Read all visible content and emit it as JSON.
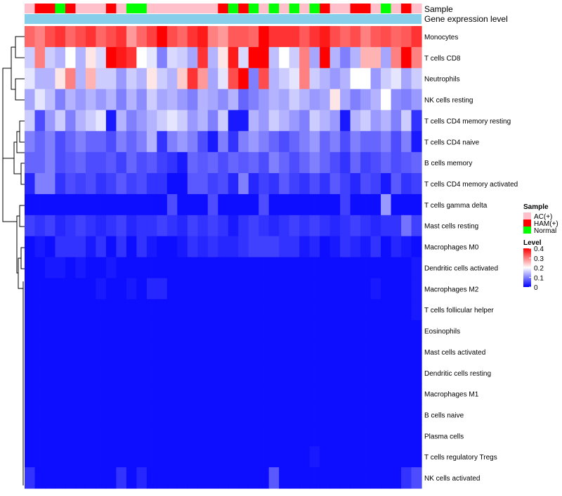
{
  "chart_data": {
    "type": "heatmap",
    "title": "",
    "annotation_tracks": [
      "Sample",
      "Gene expression level"
    ],
    "legends": {
      "sample": {
        "title": "Sample",
        "entries": [
          {
            "label": "AC(+)",
            "color": "#ffc0cb"
          },
          {
            "label": "HAM(+)",
            "color": "#ff0000"
          },
          {
            "label": "Normal",
            "color": "#00ff00"
          }
        ]
      },
      "level": {
        "title": "Level",
        "ticks": [
          "0.4",
          "0.3",
          "0.2",
          "0.1",
          "0"
        ],
        "min": 0,
        "max": 0.4
      }
    },
    "color_scale": {
      "low": "#0000ff",
      "mid": "#ffffff",
      "high": "#ff0000",
      "mid_value": 0.2
    },
    "expression_bar_color": "#87ceeb",
    "sample_groups": [
      "AC(+)",
      "HAM(+)",
      "HAM(+)",
      "Normal",
      "HAM(+)",
      "AC(+)",
      "AC(+)",
      "AC(+)",
      "HAM(+)",
      "AC(+)",
      "Normal",
      "Normal",
      "AC(+)",
      "AC(+)",
      "AC(+)",
      "AC(+)",
      "AC(+)",
      "AC(+)",
      "AC(+)",
      "HAM(+)",
      "Normal",
      "HAM(+)",
      "Normal",
      "AC(+)",
      "Normal",
      "AC(+)",
      "Normal",
      "AC(+)",
      "Normal",
      "HAM(+)",
      "AC(+)",
      "AC(+)",
      "HAM(+)",
      "HAM(+)",
      "AC(+)",
      "Normal",
      "AC(+)",
      "HAM(+)",
      "AC(+)"
    ],
    "rows": [
      "Monocytes",
      "T cells CD8",
      "Neutrophils",
      "NK cells resting",
      "T cells CD4 memory resting",
      "T cells CD4 naive",
      "B cells memory",
      "T cells CD4 memory activated",
      "T cells gamma delta",
      "Mast cells resting",
      "Macrophages M0",
      "Dendritic cells activated",
      "Macrophages M2",
      "T cells follicular helper",
      "Eosinophils",
      "Mast cells activated",
      "Dendritic cells resting",
      "Macrophages M1",
      "B cells naive",
      "Plasma cells",
      "T cells regulatory  Tregs",
      "NK cells activated"
    ],
    "values": [
      [
        0.32,
        0.3,
        0.34,
        0.36,
        0.32,
        0.34,
        0.36,
        0.32,
        0.34,
        0.36,
        0.28,
        0.32,
        0.35,
        0.4,
        0.34,
        0.32,
        0.36,
        0.38,
        0.3,
        0.28,
        0.33,
        0.33,
        0.32,
        0.4,
        0.36,
        0.36,
        0.36,
        0.33,
        0.36,
        0.38,
        0.34,
        0.32,
        0.34,
        0.3,
        0.33,
        0.34,
        0.32,
        0.33,
        0.36
      ],
      [
        0.16,
        0.3,
        0.16,
        0.14,
        0.2,
        0.14,
        0.22,
        0.17,
        0.4,
        0.38,
        0.36,
        0.2,
        0.18,
        0.1,
        0.17,
        0.16,
        0.13,
        0.36,
        0.14,
        0.22,
        0.38,
        0.17,
        0.4,
        0.4,
        0.15,
        0.2,
        0.16,
        0.3,
        0.13,
        0.4,
        0.14,
        0.1,
        0.14,
        0.26,
        0.26,
        0.13,
        0.3,
        0.4,
        0.3
      ],
      [
        0.18,
        0.14,
        0.14,
        0.22,
        0.3,
        0.14,
        0.26,
        0.16,
        0.16,
        0.12,
        0.16,
        0.14,
        0.22,
        0.16,
        0.14,
        0.24,
        0.36,
        0.28,
        0.13,
        0.18,
        0.34,
        0.4,
        0.1,
        0.34,
        0.14,
        0.16,
        0.18,
        0.3,
        0.16,
        0.14,
        0.12,
        0.14,
        0.2,
        0.2,
        0.12,
        0.16,
        0.18,
        0.13,
        0.16
      ],
      [
        0.13,
        0.18,
        0.15,
        0.1,
        0.14,
        0.12,
        0.14,
        0.12,
        0.14,
        0.1,
        0.14,
        0.11,
        0.16,
        0.13,
        0.14,
        0.12,
        0.1,
        0.14,
        0.13,
        0.11,
        0.14,
        0.08,
        0.1,
        0.12,
        0.14,
        0.13,
        0.16,
        0.14,
        0.12,
        0.13,
        0.22,
        0.13,
        0.1,
        0.12,
        0.14,
        0.2,
        0.11,
        0.1,
        0.12
      ],
      [
        0.16,
        0.06,
        0.12,
        0.16,
        0.1,
        0.14,
        0.16,
        0.18,
        0.02,
        0.14,
        0.1,
        0.12,
        0.14,
        0.16,
        0.18,
        0.16,
        0.12,
        0.14,
        0.1,
        0.16,
        0.02,
        0.02,
        0.14,
        0.12,
        0.16,
        0.14,
        0.12,
        0.1,
        0.16,
        0.14,
        0.12,
        0.02,
        0.14,
        0.16,
        0.12,
        0.14,
        0.1,
        0.16,
        0.04
      ],
      [
        0.1,
        0.08,
        0.1,
        0.06,
        0.08,
        0.1,
        0.08,
        0.08,
        0.06,
        0.1,
        0.08,
        0.1,
        0.14,
        0.04,
        0.1,
        0.12,
        0.1,
        0.06,
        0.02,
        0.1,
        0.04,
        0.1,
        0.12,
        0.1,
        0.08,
        0.06,
        0.08,
        0.1,
        0.12,
        0.08,
        0.1,
        0.06,
        0.1,
        0.08,
        0.08,
        0.1,
        0.06,
        0.1,
        0.02
      ],
      [
        0.08,
        0.08,
        0.1,
        0.06,
        0.07,
        0.08,
        0.06,
        0.06,
        0.07,
        0.05,
        0.08,
        0.06,
        0.07,
        0.05,
        0.04,
        0.02,
        0.08,
        0.07,
        0.08,
        0.06,
        0.08,
        0.07,
        0.08,
        0.06,
        0.1,
        0.08,
        0.06,
        0.08,
        0.1,
        0.08,
        0.06,
        0.04,
        0.08,
        0.05,
        0.06,
        0.08,
        0.06,
        0.07,
        0.08
      ],
      [
        0.03,
        0.1,
        0.1,
        0.04,
        0.06,
        0.05,
        0.06,
        0.04,
        0.05,
        0.07,
        0.05,
        0.06,
        0.04,
        0.04,
        0.01,
        0.01,
        0.07,
        0.07,
        0.05,
        0.06,
        0.03,
        0.1,
        0.03,
        0.05,
        0.04,
        0.07,
        0.05,
        0.04,
        0.06,
        0.04,
        0.07,
        0.05,
        0.03,
        0.06,
        0.05,
        0.02,
        0.07,
        0.04,
        0.05
      ],
      [
        0.01,
        0.01,
        0.01,
        0.01,
        0.01,
        0.01,
        0.01,
        0.01,
        0.01,
        0.01,
        0.01,
        0.01,
        0.01,
        0.01,
        0.06,
        0.01,
        0.01,
        0.01,
        0.06,
        0.01,
        0.01,
        0.01,
        0.01,
        0.06,
        0.01,
        0.01,
        0.01,
        0.01,
        0.01,
        0.01,
        0.01,
        0.05,
        0.01,
        0.01,
        0.01,
        0.12,
        0.01,
        0.01,
        0.01
      ],
      [
        0.05,
        0.04,
        0.05,
        0.03,
        0.04,
        0.05,
        0.04,
        0.03,
        0.04,
        0.05,
        0.03,
        0.04,
        0.04,
        0.05,
        0.04,
        0.03,
        0.05,
        0.04,
        0.05,
        0.04,
        0.02,
        0.04,
        0.05,
        0.04,
        0.03,
        0.04,
        0.05,
        0.04,
        0.05,
        0.04,
        0.03,
        0.04,
        0.05,
        0.04,
        0.03,
        0.04,
        0.04,
        0.09,
        0.05
      ],
      [
        0.01,
        0.02,
        0.01,
        0.04,
        0.04,
        0.04,
        0.02,
        0.04,
        0.01,
        0.04,
        0.01,
        0.04,
        0.02,
        0.01,
        0.01,
        0.02,
        0.04,
        0.03,
        0.04,
        0.03,
        0.03,
        0.04,
        0.05,
        0.05,
        0.05,
        0.04,
        0.04,
        0.02,
        0.03,
        0.01,
        0.02,
        0.04,
        0.03,
        0.02,
        0.04,
        0.01,
        0.03,
        0.02,
        0.01
      ],
      [
        0.01,
        0.01,
        0.02,
        0.02,
        0.01,
        0.02,
        0.01,
        0.01,
        0.02,
        0.01,
        0.01,
        0.01,
        0.01,
        0.01,
        0.01,
        0.01,
        0.01,
        0.01,
        0.01,
        0.01,
        0.01,
        0.01,
        0.01,
        0.01,
        0.01,
        0.01,
        0.01,
        0.01,
        0.01,
        0.01,
        0.01,
        0.01,
        0.01,
        0.01,
        0.01,
        0.01,
        0.01,
        0.01,
        0.02
      ],
      [
        0.01,
        0.01,
        0.01,
        0.01,
        0.01,
        0.01,
        0.01,
        0.02,
        0.01,
        0.01,
        0.02,
        0.01,
        0.03,
        0.03,
        0.01,
        0.01,
        0.01,
        0.01,
        0.01,
        0.01,
        0.01,
        0.01,
        0.01,
        0.01,
        0.01,
        0.01,
        0.01,
        0.01,
        0.01,
        0.01,
        0.01,
        0.01,
        0.01,
        0.01,
        0.02,
        0.01,
        0.01,
        0.01,
        0.02
      ],
      [
        0.01,
        0.01,
        0.01,
        0.01,
        0.01,
        0.01,
        0.01,
        0.01,
        0.01,
        0.01,
        0.01,
        0.01,
        0.01,
        0.01,
        0.01,
        0.01,
        0.01,
        0.01,
        0.01,
        0.01,
        0.01,
        0.01,
        0.01,
        0.01,
        0.01,
        0.01,
        0.01,
        0.01,
        0.01,
        0.01,
        0.01,
        0.01,
        0.01,
        0.01,
        0.01,
        0.01,
        0.01,
        0.01,
        0.02
      ],
      [
        0.01,
        0.01,
        0.01,
        0.01,
        0.01,
        0.01,
        0.01,
        0.01,
        0.01,
        0.01,
        0.01,
        0.01,
        0.01,
        0.01,
        0.01,
        0.01,
        0.01,
        0.01,
        0.01,
        0.01,
        0.01,
        0.01,
        0.01,
        0.01,
        0.01,
        0.01,
        0.01,
        0.01,
        0.01,
        0.01,
        0.01,
        0.01,
        0.01,
        0.01,
        0.01,
        0.01,
        0.01,
        0.01,
        0.01
      ],
      [
        0.01,
        0.01,
        0.01,
        0.01,
        0.01,
        0.01,
        0.01,
        0.01,
        0.01,
        0.01,
        0.01,
        0.01,
        0.01,
        0.01,
        0.01,
        0.01,
        0.01,
        0.01,
        0.01,
        0.01,
        0.01,
        0.01,
        0.01,
        0.01,
        0.01,
        0.01,
        0.01,
        0.01,
        0.01,
        0.01,
        0.01,
        0.01,
        0.01,
        0.01,
        0.01,
        0.01,
        0.01,
        0.01,
        0.01
      ],
      [
        0.01,
        0.01,
        0.01,
        0.01,
        0.01,
        0.01,
        0.01,
        0.01,
        0.01,
        0.01,
        0.01,
        0.01,
        0.01,
        0.01,
        0.01,
        0.01,
        0.01,
        0.01,
        0.01,
        0.01,
        0.01,
        0.01,
        0.01,
        0.01,
        0.01,
        0.01,
        0.01,
        0.01,
        0.01,
        0.01,
        0.01,
        0.01,
        0.01,
        0.01,
        0.01,
        0.01,
        0.01,
        0.01,
        0.01
      ],
      [
        0.01,
        0.01,
        0.01,
        0.01,
        0.01,
        0.01,
        0.01,
        0.01,
        0.01,
        0.01,
        0.01,
        0.01,
        0.01,
        0.01,
        0.01,
        0.01,
        0.01,
        0.01,
        0.01,
        0.01,
        0.01,
        0.01,
        0.01,
        0.01,
        0.01,
        0.01,
        0.01,
        0.01,
        0.01,
        0.01,
        0.01,
        0.01,
        0.01,
        0.01,
        0.01,
        0.01,
        0.01,
        0.01,
        0.01
      ],
      [
        0.01,
        0.01,
        0.01,
        0.01,
        0.01,
        0.01,
        0.01,
        0.01,
        0.01,
        0.01,
        0.01,
        0.01,
        0.01,
        0.01,
        0.01,
        0.01,
        0.01,
        0.01,
        0.01,
        0.01,
        0.01,
        0.01,
        0.01,
        0.01,
        0.01,
        0.01,
        0.01,
        0.01,
        0.01,
        0.01,
        0.01,
        0.01,
        0.01,
        0.01,
        0.01,
        0.01,
        0.01,
        0.01,
        0.01
      ],
      [
        0.01,
        0.01,
        0.01,
        0.01,
        0.01,
        0.01,
        0.01,
        0.01,
        0.01,
        0.01,
        0.01,
        0.01,
        0.01,
        0.01,
        0.01,
        0.01,
        0.01,
        0.01,
        0.01,
        0.01,
        0.01,
        0.01,
        0.01,
        0.01,
        0.01,
        0.01,
        0.01,
        0.01,
        0.01,
        0.01,
        0.01,
        0.01,
        0.01,
        0.01,
        0.01,
        0.01,
        0.01,
        0.01,
        0.01
      ],
      [
        0.01,
        0.01,
        0.01,
        0.01,
        0.01,
        0.01,
        0.01,
        0.01,
        0.01,
        0.01,
        0.01,
        0.01,
        0.01,
        0.01,
        0.01,
        0.01,
        0.01,
        0.01,
        0.01,
        0.01,
        0.01,
        0.01,
        0.01,
        0.01,
        0.01,
        0.01,
        0.01,
        0.01,
        0.02,
        0.01,
        0.01,
        0.01,
        0.01,
        0.01,
        0.01,
        0.01,
        0.01,
        0.01,
        0.01
      ],
      [
        0.04,
        0.01,
        0.01,
        0.01,
        0.01,
        0.01,
        0.01,
        0.01,
        0.01,
        0.04,
        0.01,
        0.03,
        0.01,
        0.01,
        0.01,
        0.01,
        0.01,
        0.01,
        0.01,
        0.01,
        0.01,
        0.01,
        0.01,
        0.01,
        0.07,
        0.01,
        0.01,
        0.01,
        0.01,
        0.01,
        0.01,
        0.01,
        0.01,
        0.01,
        0.01,
        0.01,
        0.01,
        0.04,
        0.06
      ]
    ]
  }
}
